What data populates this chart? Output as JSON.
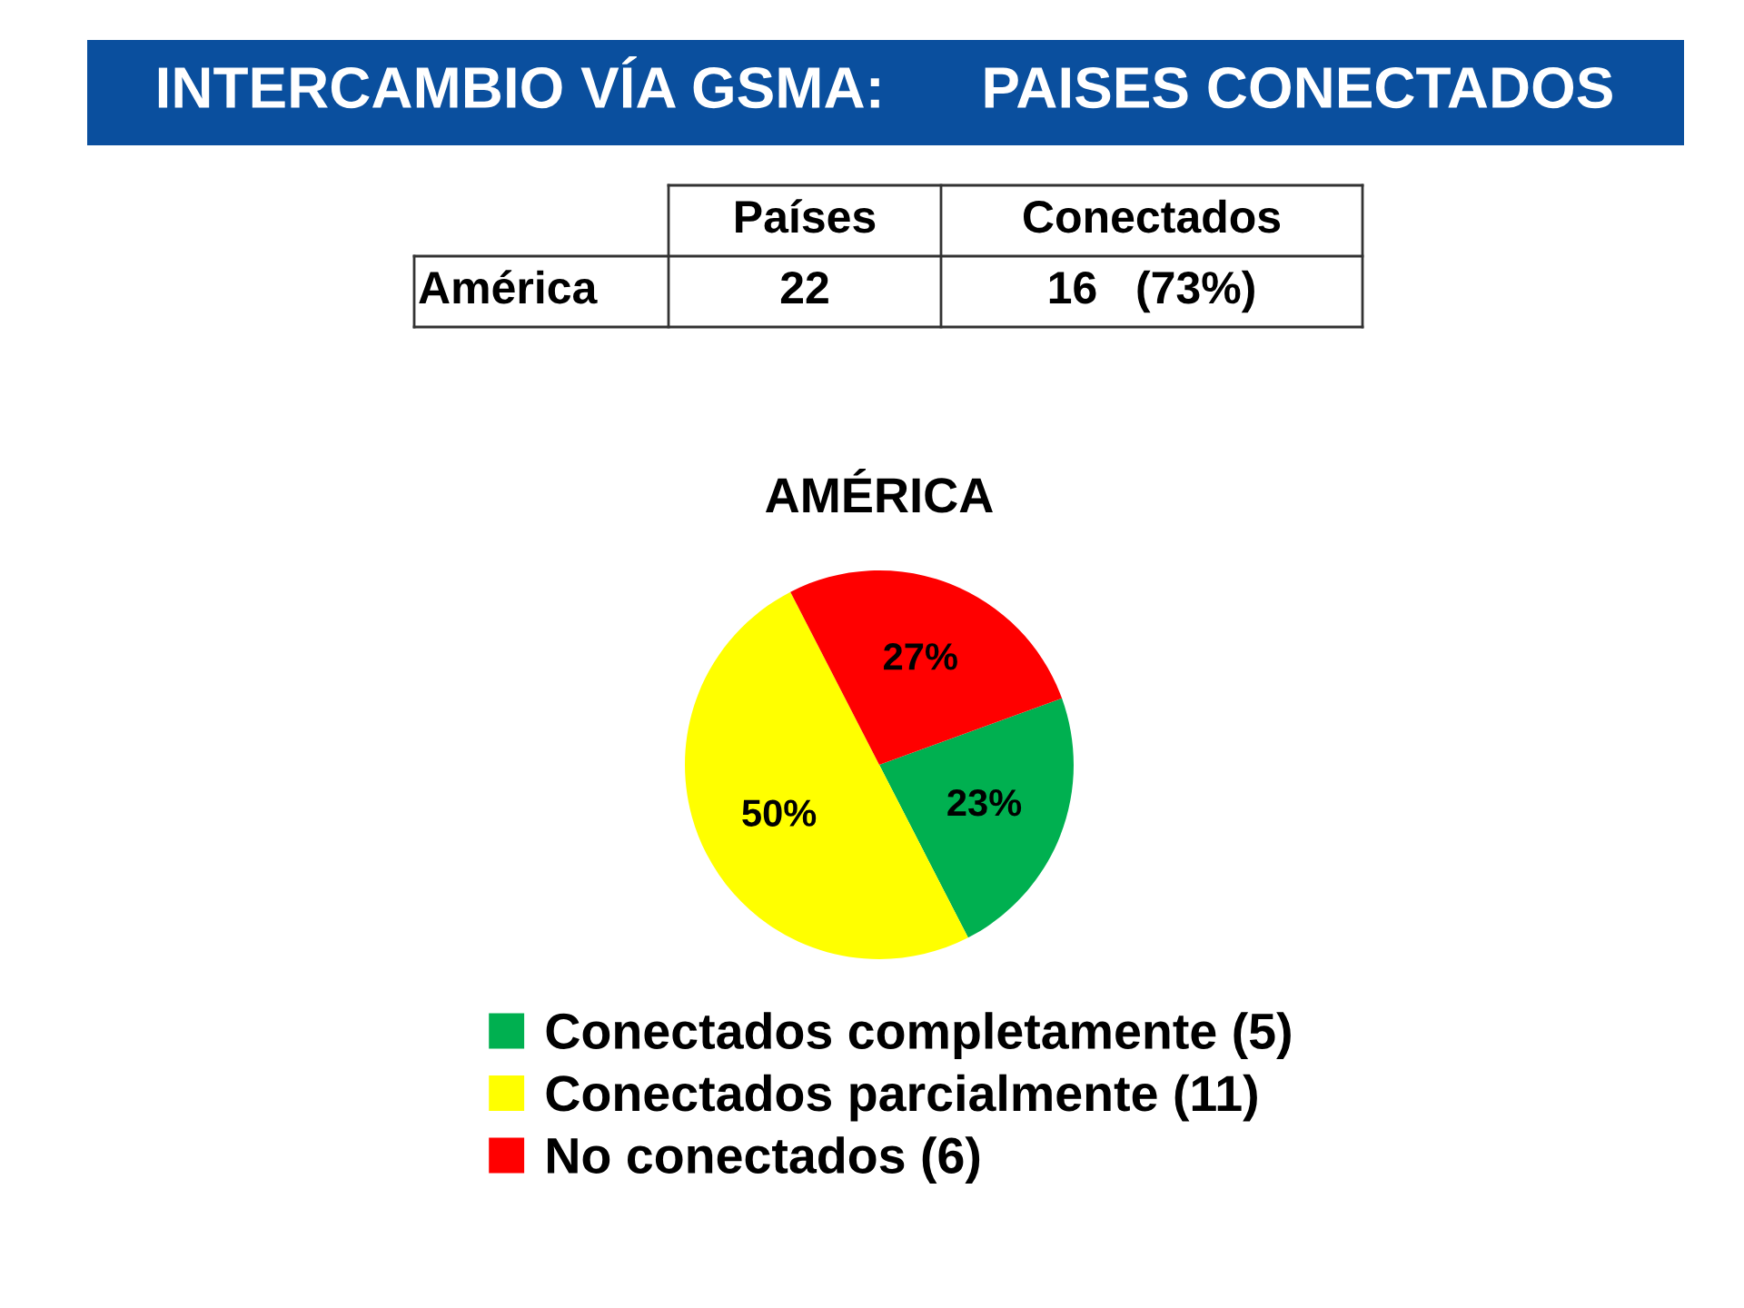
{
  "chart_data": {
    "type": "pie",
    "title": "INTERCAMBIO VÍA GSMA:      PAISES CONECTADOS",
    "subtitle": "AMÉRICA",
    "annotations": [
      "Países",
      "Conectados",
      "América",
      "22",
      "16   (73%)"
    ],
    "categories": [
      "Conectados completamente (5)",
      "Conectados parcialmente (11)",
      "No conectados (6)"
    ],
    "values": [
      23,
      50,
      27
    ],
    "colors": [
      "#00b050",
      "#ffff00",
      "#ff0000"
    ],
    "value_labels": [
      "23%",
      "50%",
      "27%"
    ],
    "legend": "bottom"
  }
}
